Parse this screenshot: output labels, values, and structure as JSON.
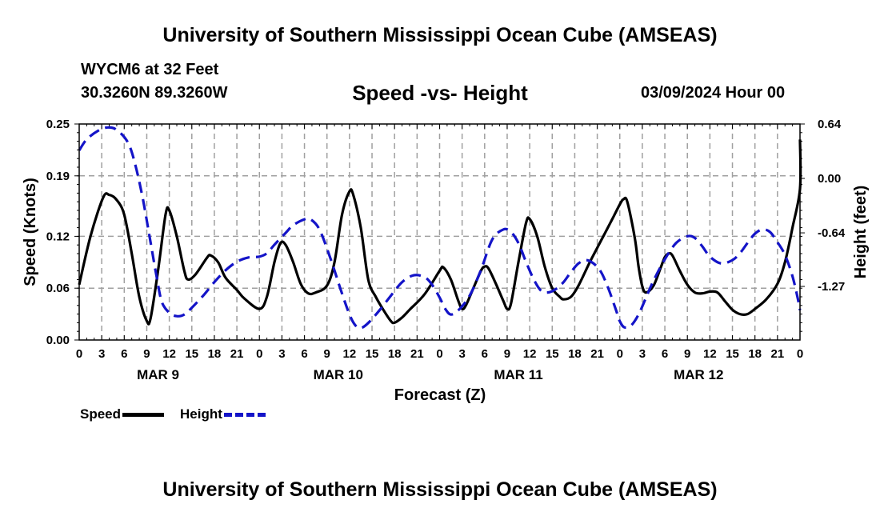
{
  "header": {
    "title": "University of Southern Mississippi Ocean Cube (AMSEAS)",
    "station": "WYCM6 at 32 Feet",
    "coords": "30.3260N  89.3260W",
    "subtitle": "Speed -vs- Height",
    "datetime": "03/09/2024 Hour 00"
  },
  "footer": {
    "title": "University of Southern Mississippi Ocean Cube (AMSEAS)"
  },
  "legend": {
    "speed_label": "Speed",
    "height_label": "Height"
  },
  "chart_data": {
    "type": "line",
    "title": "Speed -vs- Height",
    "xlabel": "Forecast (Z)",
    "ylabel": "Speed (Knots)",
    "y2label": "Height (feet)",
    "xlim": [
      0,
      96
    ],
    "ylim": [
      0,
      0.25
    ],
    "y2lim": [
      -1.9,
      0.64
    ],
    "yticks": [
      "0.25",
      "0.19",
      "0.12",
      "0.06",
      "0.00"
    ],
    "yticks_values": [
      0.25,
      0.19,
      0.12,
      0.06,
      0.0
    ],
    "y2ticks": [
      "0.64",
      "0.00",
      "-0.64",
      "-1.27"
    ],
    "y2ticks_values": [
      0.64,
      0.0,
      -0.64,
      -1.27
    ],
    "xtick_labels": [
      "0",
      "3",
      "6",
      "9",
      "12",
      "15",
      "18",
      "21",
      "0",
      "3",
      "6",
      "9",
      "12",
      "15",
      "18",
      "21",
      "0",
      "3",
      "6",
      "9",
      "12",
      "15",
      "18",
      "21",
      "0",
      "3",
      "6",
      "9",
      "12",
      "15",
      "18",
      "21",
      "0"
    ],
    "day_labels": [
      {
        "label": "MAR 9",
        "hour": 10.5
      },
      {
        "label": "MAR 10",
        "hour": 34.5
      },
      {
        "label": "MAR 11",
        "hour": 58.5
      },
      {
        "label": "MAR 12",
        "hour": 82.5
      }
    ],
    "grid": true,
    "colors": {
      "speed": "#000000",
      "height": "#1414c8",
      "grid": "#a0a0a0"
    },
    "series": [
      {
        "name": "Speed",
        "axis": "left",
        "style": "solid",
        "points": [
          [
            0,
            0.064
          ],
          [
            1.5,
            0.12
          ],
          [
            3.2,
            0.165
          ],
          [
            4,
            0.168
          ],
          [
            5,
            0.162
          ],
          [
            6,
            0.145
          ],
          [
            7,
            0.1
          ],
          [
            8,
            0.05
          ],
          [
            9,
            0.022
          ],
          [
            9.5,
            0.025
          ],
          [
            10.5,
            0.08
          ],
          [
            11.5,
            0.145
          ],
          [
            12,
            0.15
          ],
          [
            13,
            0.12
          ],
          [
            14,
            0.08
          ],
          [
            14.5,
            0.07
          ],
          [
            15.5,
            0.076
          ],
          [
            17,
            0.095
          ],
          [
            17.5,
            0.098
          ],
          [
            18.5,
            0.09
          ],
          [
            19.5,
            0.072
          ],
          [
            21,
            0.058
          ],
          [
            22,
            0.048
          ],
          [
            24,
            0.036
          ],
          [
            25,
            0.05
          ],
          [
            26,
            0.09
          ],
          [
            26.8,
            0.112
          ],
          [
            27.5,
            0.11
          ],
          [
            28.5,
            0.09
          ],
          [
            29.5,
            0.065
          ],
          [
            30.5,
            0.054
          ],
          [
            31.5,
            0.055
          ],
          [
            33,
            0.063
          ],
          [
            34,
            0.09
          ],
          [
            35,
            0.145
          ],
          [
            36,
            0.172
          ],
          [
            36.5,
            0.168
          ],
          [
            37.5,
            0.13
          ],
          [
            38.5,
            0.07
          ],
          [
            39.5,
            0.05
          ],
          [
            40.5,
            0.035
          ],
          [
            41.5,
            0.022
          ],
          [
            42,
            0.02
          ],
          [
            43,
            0.026
          ],
          [
            44,
            0.035
          ],
          [
            46,
            0.053
          ],
          [
            48,
            0.08
          ],
          [
            48.5,
            0.084
          ],
          [
            49.5,
            0.07
          ],
          [
            50.5,
            0.045
          ],
          [
            51,
            0.036
          ],
          [
            51.5,
            0.04
          ],
          [
            52.5,
            0.06
          ],
          [
            53.5,
            0.08
          ],
          [
            54,
            0.085
          ],
          [
            54.5,
            0.083
          ],
          [
            55.5,
            0.065
          ],
          [
            56.5,
            0.045
          ],
          [
            57,
            0.036
          ],
          [
            57.5,
            0.042
          ],
          [
            58.5,
            0.09
          ],
          [
            59.5,
            0.135
          ],
          [
            60,
            0.14
          ],
          [
            61,
            0.12
          ],
          [
            62,
            0.085
          ],
          [
            63,
            0.06
          ],
          [
            64,
            0.05
          ],
          [
            64.5,
            0.047
          ],
          [
            65.5,
            0.05
          ],
          [
            66.5,
            0.063
          ],
          [
            68,
            0.09
          ],
          [
            69.5,
            0.115
          ],
          [
            71,
            0.14
          ],
          [
            72,
            0.157
          ],
          [
            72.5,
            0.163
          ],
          [
            73,
            0.16
          ],
          [
            74,
            0.118
          ],
          [
            74.5,
            0.085
          ],
          [
            75,
            0.062
          ],
          [
            75.5,
            0.055
          ],
          [
            76.5,
            0.063
          ],
          [
            77.5,
            0.085
          ],
          [
            78,
            0.096
          ],
          [
            78.5,
            0.1
          ],
          [
            79,
            0.098
          ],
          [
            80,
            0.08
          ],
          [
            81,
            0.064
          ],
          [
            82,
            0.055
          ],
          [
            83,
            0.054
          ],
          [
            84,
            0.056
          ],
          [
            85,
            0.055
          ],
          [
            86,
            0.045
          ],
          [
            87,
            0.035
          ],
          [
            88,
            0.03
          ],
          [
            89,
            0.03
          ],
          [
            90,
            0.036
          ],
          [
            91.5,
            0.047
          ],
          [
            93,
            0.065
          ],
          [
            94,
            0.09
          ],
          [
            95,
            0.13
          ],
          [
            96,
            0.175
          ],
          [
            96,
            0.232
          ]
        ]
      },
      {
        "name": "Height",
        "axis": "right",
        "style": "dashed",
        "points": [
          [
            0,
            0.33
          ],
          [
            1,
            0.46
          ],
          [
            2.5,
            0.56
          ],
          [
            3.8,
            0.6
          ],
          [
            5,
            0.57
          ],
          [
            6.5,
            0.42
          ],
          [
            7.5,
            0.15
          ],
          [
            8.5,
            -0.25
          ],
          [
            9.5,
            -0.75
          ],
          [
            10.3,
            -1.15
          ],
          [
            11,
            -1.45
          ],
          [
            12,
            -1.58
          ],
          [
            13,
            -1.62
          ],
          [
            14,
            -1.6
          ],
          [
            15,
            -1.52
          ],
          [
            16.5,
            -1.38
          ],
          [
            18,
            -1.22
          ],
          [
            19.5,
            -1.08
          ],
          [
            21,
            -0.98
          ],
          [
            22.5,
            -0.93
          ],
          [
            24,
            -0.92
          ],
          [
            25,
            -0.88
          ],
          [
            26,
            -0.78
          ],
          [
            27.5,
            -0.64
          ],
          [
            28.5,
            -0.55
          ],
          [
            30,
            -0.48
          ],
          [
            30.8,
            -0.48
          ],
          [
            32,
            -0.6
          ],
          [
            33.5,
            -0.95
          ],
          [
            34.8,
            -1.3
          ],
          [
            36,
            -1.6
          ],
          [
            36.8,
            -1.73
          ],
          [
            37.5,
            -1.76
          ],
          [
            38.5,
            -1.7
          ],
          [
            40,
            -1.55
          ],
          [
            41.5,
            -1.38
          ],
          [
            43,
            -1.22
          ],
          [
            44.5,
            -1.14
          ],
          [
            46,
            -1.16
          ],
          [
            47,
            -1.25
          ],
          [
            48,
            -1.4
          ],
          [
            48.8,
            -1.54
          ],
          [
            49.5,
            -1.6
          ],
          [
            50.5,
            -1.55
          ],
          [
            52,
            -1.38
          ],
          [
            53.5,
            -1.08
          ],
          [
            55,
            -0.72
          ],
          [
            56.5,
            -0.6
          ],
          [
            57.5,
            -0.63
          ],
          [
            58.5,
            -0.76
          ],
          [
            59.5,
            -0.98
          ],
          [
            60.5,
            -1.18
          ],
          [
            61.5,
            -1.32
          ],
          [
            62.5,
            -1.34
          ],
          [
            63.5,
            -1.3
          ],
          [
            64.5,
            -1.22
          ],
          [
            65.5,
            -1.1
          ],
          [
            66.5,
            -1.0
          ],
          [
            67.5,
            -0.96
          ],
          [
            68.5,
            -1.0
          ],
          [
            69.5,
            -1.1
          ],
          [
            70.5,
            -1.3
          ],
          [
            71.5,
            -1.55
          ],
          [
            72,
            -1.68
          ],
          [
            72.6,
            -1.75
          ],
          [
            73.5,
            -1.73
          ],
          [
            74.5,
            -1.6
          ],
          [
            75.5,
            -1.4
          ],
          [
            76.5,
            -1.2
          ],
          [
            78,
            -0.95
          ],
          [
            79.5,
            -0.76
          ],
          [
            81,
            -0.68
          ],
          [
            82,
            -0.7
          ],
          [
            83,
            -0.8
          ],
          [
            84,
            -0.92
          ],
          [
            85.5,
            -1.0
          ],
          [
            87,
            -0.96
          ],
          [
            88,
            -0.88
          ],
          [
            89,
            -0.76
          ],
          [
            90,
            -0.65
          ],
          [
            91,
            -0.6
          ],
          [
            92,
            -0.63
          ],
          [
            93,
            -0.75
          ],
          [
            94,
            -0.9
          ],
          [
            95,
            -1.15
          ],
          [
            95.8,
            -1.45
          ],
          [
            96,
            -1.55
          ]
        ]
      }
    ]
  }
}
